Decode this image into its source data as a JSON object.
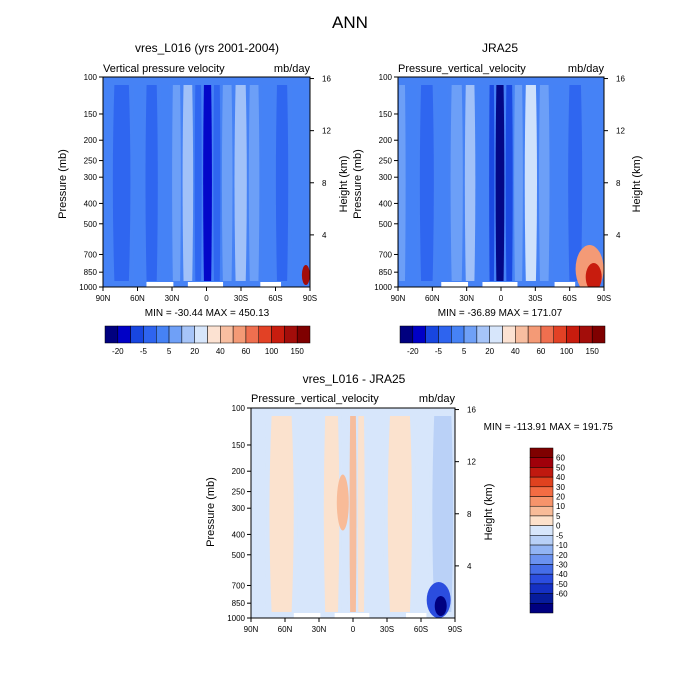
{
  "page_title": "ANN",
  "panels": [
    {
      "title": "vres_L016 (yrs 2001-2004)",
      "left_label": "Vertical pressure velocity",
      "right_label": "mb/day",
      "ylabel": "Pressure (mb)",
      "ylabel_right": "Height (km)",
      "stats": "MIN = -30.44   MAX = 450.13"
    },
    {
      "title": "JRA25",
      "left_label": "Pressure_vertical_velocity",
      "right_label": "mb/day",
      "ylabel": "Pressure (mb)",
      "ylabel_right": "Height (km)",
      "stats": "MIN = -36.89   MAX = 171.07"
    },
    {
      "title": "vres_L016 - JRA25",
      "left_label": "Pressure_vertical_velocity",
      "right_label": "mb/day",
      "ylabel": "Pressure (mb)",
      "ylabel_right": "Height (km)",
      "stats": "MIN = -113.91  MAX = 191.75"
    }
  ],
  "chart_data": [
    {
      "type": "heatmap",
      "title": "vres_L016 (yrs 2001-2004)",
      "variable": "Vertical pressure velocity",
      "units": "mb/day",
      "x_ticks": [
        "90N",
        "60N",
        "30N",
        "0",
        "30S",
        "60S",
        "90S"
      ],
      "y_ticks": [
        "100",
        "150",
        "200",
        "250",
        "300",
        "400",
        "500",
        "700",
        "850",
        "1000"
      ],
      "y_scale": "log",
      "ylim": [
        1000,
        100
      ],
      "y2_ticks": [
        "4",
        "8",
        "12",
        "16"
      ],
      "min": -30.44,
      "max": 450.13,
      "colorbar_levels": [
        "-20",
        "-5",
        "5",
        "20",
        "40",
        "60",
        "100",
        "150"
      ]
    },
    {
      "type": "heatmap",
      "title": "JRA25",
      "variable": "Pressure_vertical_velocity",
      "units": "mb/day",
      "x_ticks": [
        "90N",
        "60N",
        "30N",
        "0",
        "30S",
        "60S",
        "90S"
      ],
      "y_ticks": [
        "100",
        "150",
        "200",
        "250",
        "300",
        "400",
        "500",
        "700",
        "850",
        "1000"
      ],
      "y_scale": "log",
      "ylim": [
        1000,
        100
      ],
      "y2_ticks": [
        "4",
        "8",
        "12",
        "16"
      ],
      "min": -36.89,
      "max": 171.07,
      "colorbar_levels": [
        "-20",
        "-5",
        "5",
        "20",
        "40",
        "60",
        "100",
        "150"
      ]
    },
    {
      "type": "heatmap",
      "title": "vres_L016 - JRA25",
      "variable": "Pressure_vertical_velocity",
      "units": "mb/day",
      "x_ticks": [
        "90N",
        "60N",
        "30N",
        "0",
        "30S",
        "60S",
        "90S"
      ],
      "y_ticks": [
        "100",
        "150",
        "200",
        "250",
        "300",
        "400",
        "500",
        "700",
        "850",
        "1000"
      ],
      "y_scale": "log",
      "ylim": [
        1000,
        100
      ],
      "y2_ticks": [
        "4",
        "8",
        "12",
        "16"
      ],
      "min": -113.91,
      "max": 191.75,
      "colorbar_levels": [
        "60",
        "50",
        "40",
        "30",
        "20",
        "10",
        "5",
        "0",
        "-5",
        "-10",
        "-20",
        "-30",
        "-40",
        "-50",
        "-60"
      ]
    }
  ],
  "colors": {
    "top_colorbar": [
      "#00007f",
      "#0000c6",
      "#1846e0",
      "#2e64ef",
      "#4682f5",
      "#6fa0f7",
      "#a6c4f8",
      "#d7e6fb",
      "#fce2d2",
      "#f8bea0",
      "#f49a76",
      "#ef6f4f",
      "#e24125",
      "#c81c0e",
      "#a30d0a",
      "#7f0000"
    ],
    "diff_colorbar": [
      "#7f0000",
      "#a0000a",
      "#c0190f",
      "#e0421f",
      "#f36c43",
      "#f6946b",
      "#f8bb98",
      "#fde1cb",
      "#d7e6fb",
      "#b8d0f7",
      "#92b4f4",
      "#6b92f0",
      "#456de8",
      "#2b4ddf",
      "#1530c3",
      "#071c9c",
      "#000080"
    ]
  }
}
